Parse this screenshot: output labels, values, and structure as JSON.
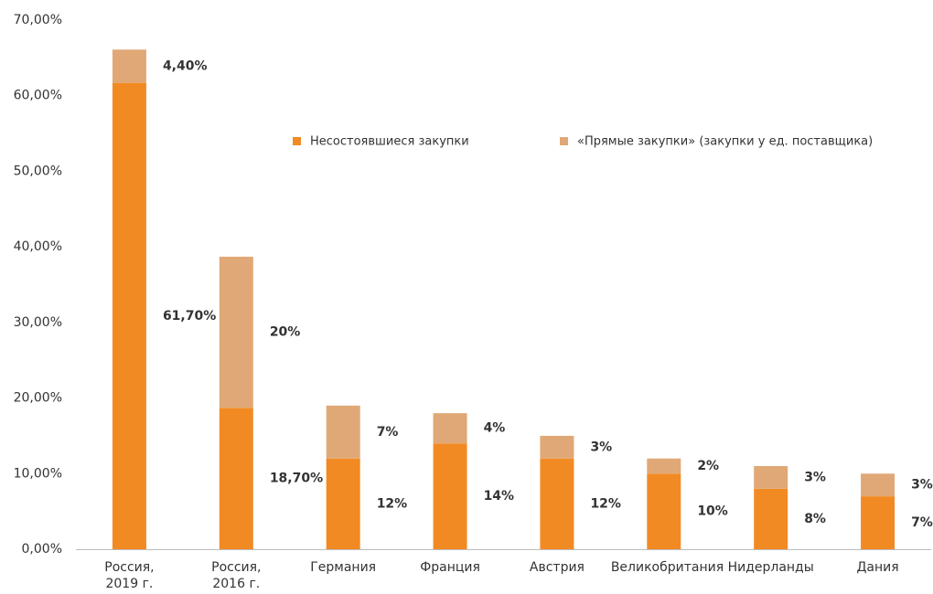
{
  "chart_data": {
    "type": "stacked_bar",
    "categories": [
      "Россия,\n2019 г.",
      "Россия,\n2016 г.",
      "Германия",
      "Франция",
      "Австрия",
      "Великобритания",
      "Нидерланды",
      "Дания"
    ],
    "series": [
      {
        "name": "Несостоявшиеся закупки",
        "color": "#f28a24",
        "values": [
          61.7,
          18.7,
          12,
          14,
          12,
          10,
          8,
          7
        ],
        "value_labels": [
          "61,70%",
          "18,70%",
          "12%",
          "14%",
          "12%",
          "10%",
          "8%",
          "7%"
        ]
      },
      {
        "name": "«Прямые закупки» (закупки у ед. поставщика)",
        "color": "#e0a876",
        "values": [
          4.4,
          20,
          7,
          4,
          3,
          2,
          3,
          3
        ],
        "value_labels": [
          "4,40%",
          "20%",
          "7%",
          "4%",
          "3%",
          "2%",
          "3%",
          "3%"
        ]
      }
    ],
    "ylim": [
      0,
      70
    ],
    "yticks": [
      {
        "value": 0,
        "label": "0,00%"
      },
      {
        "value": 10,
        "label": "10,00%"
      },
      {
        "value": 20,
        "label": "20,00%"
      },
      {
        "value": 30,
        "label": "30,00%"
      },
      {
        "value": 40,
        "label": "40,00%"
      },
      {
        "value": 50,
        "label": "50,00%"
      },
      {
        "value": 60,
        "label": "60,00%"
      },
      {
        "value": 70,
        "label": "70,00%"
      }
    ],
    "grid": false
  }
}
